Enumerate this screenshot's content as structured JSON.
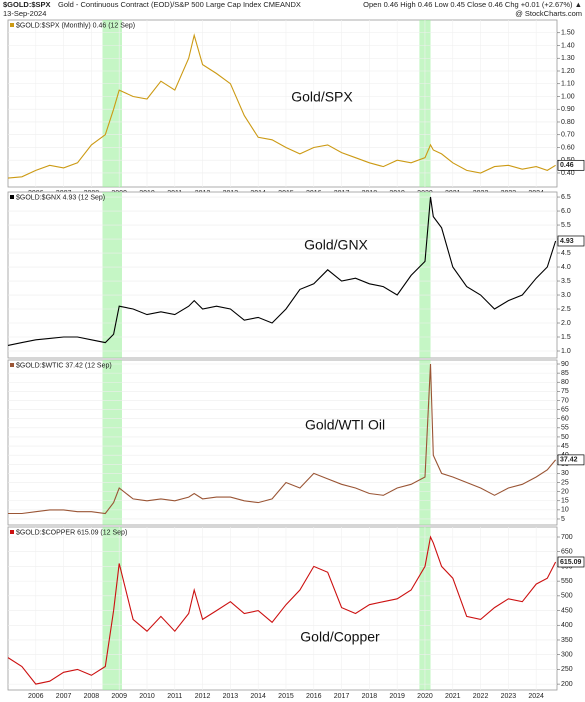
{
  "header": {
    "title": "$GOLD:$SPX",
    "subtitle": "Gold - Continuous Contract (EOD)/S&P 500 Large Cap Index CMEANDX",
    "date": "13-Sep-2024",
    "ohlc": "Open 0.46  High 0.46  Low 0.45  Close 0.46  Chg +0.01 (+2.67%) ▲",
    "credit": "@ StockCharts.com"
  },
  "chart_data": [
    {
      "type": "line",
      "annotation": "Gold/SPX",
      "xlim": [
        2005.0,
        2024.75
      ],
      "ylim": [
        0.29,
        1.6
      ],
      "highlights": [
        [
          2008.4,
          2009.1
        ],
        [
          2019.8,
          2020.2
        ]
      ],
      "xticks": [
        2006,
        2007,
        2008,
        2009,
        2010,
        2011,
        2012,
        2013,
        2014,
        2015,
        2016,
        2017,
        2018,
        2019,
        2020,
        2021,
        2022,
        2023,
        2024
      ],
      "yticks": [
        {
          "value": 0.4,
          "label": "0.40"
        },
        {
          "value": 0.5,
          "label": "0.50"
        },
        {
          "value": 0.6,
          "label": "0.60"
        },
        {
          "value": 0.7,
          "label": "0.70"
        },
        {
          "value": 0.8,
          "label": "0.80"
        },
        {
          "value": 0.9,
          "label": "0.90"
        },
        {
          "value": 1.0,
          "label": "1.00"
        },
        {
          "value": 1.1,
          "label": "1.10"
        },
        {
          "value": 1.2,
          "label": "1.20"
        },
        {
          "value": 1.3,
          "label": "1.30"
        },
        {
          "value": 1.4,
          "label": "1.40"
        },
        {
          "value": 1.5,
          "label": "1.50"
        }
      ],
      "x": [
        2005.0,
        2005.5,
        2006.0,
        2006.5,
        2007.0,
        2007.5,
        2008.0,
        2008.5,
        2008.8,
        2009.0,
        2009.5,
        2010.0,
        2010.5,
        2011.0,
        2011.5,
        2011.7,
        2012.0,
        2012.5,
        2013.0,
        2013.5,
        2014.0,
        2014.5,
        2015.0,
        2015.5,
        2016.0,
        2016.5,
        2017.0,
        2017.5,
        2018.0,
        2018.5,
        2019.0,
        2019.5,
        2020.0,
        2020.2,
        2020.3,
        2020.6,
        2021.0,
        2021.5,
        2022.0,
        2022.5,
        2023.0,
        2023.5,
        2024.0,
        2024.4,
        2024.7
      ],
      "series": [
        {
          "name": "$GOLD:$SPX (Monthly) 0.46 (12 Sep)",
          "color": "#cc9a14",
          "values": [
            0.36,
            0.37,
            0.42,
            0.46,
            0.44,
            0.48,
            0.62,
            0.7,
            0.9,
            1.05,
            1.0,
            0.98,
            1.12,
            1.05,
            1.3,
            1.48,
            1.25,
            1.18,
            1.1,
            0.85,
            0.68,
            0.66,
            0.6,
            0.55,
            0.6,
            0.62,
            0.56,
            0.52,
            0.48,
            0.45,
            0.5,
            0.48,
            0.52,
            0.62,
            0.58,
            0.55,
            0.48,
            0.42,
            0.4,
            0.45,
            0.46,
            0.43,
            0.45,
            0.42,
            0.46
          ]
        }
      ]
    },
    {
      "type": "line",
      "annotation": "Gold/GNX",
      "xlim": [
        2005.0,
        2024.75
      ],
      "ylim": [
        0.75,
        6.68
      ],
      "highlights": [
        [
          2008.4,
          2009.1
        ],
        [
          2019.8,
          2020.2
        ]
      ],
      "yticks": [
        {
          "value": 1,
          "label": "1.0"
        },
        1.5,
        {
          "value": 2,
          "label": "2.0"
        },
        2.5,
        {
          "value": 3,
          "label": "3.0"
        },
        3.5,
        {
          "value": 4,
          "label": "4.0"
        },
        4.5,
        {
          "value": 5,
          "label": "5.0"
        },
        5.5,
        {
          "value": 6,
          "label": "6.0"
        },
        6.5
      ],
      "x": [
        2005.0,
        2005.5,
        2006.0,
        2006.5,
        2007.0,
        2007.5,
        2008.0,
        2008.5,
        2008.8,
        2009.0,
        2009.5,
        2010.0,
        2010.5,
        2011.0,
        2011.5,
        2011.7,
        2012.0,
        2012.5,
        2013.0,
        2013.5,
        2014.0,
        2014.5,
        2015.0,
        2015.5,
        2016.0,
        2016.5,
        2017.0,
        2017.5,
        2018.0,
        2018.5,
        2019.0,
        2019.5,
        2020.0,
        2020.2,
        2020.3,
        2020.6,
        2021.0,
        2021.5,
        2022.0,
        2022.5,
        2023.0,
        2023.5,
        2024.0,
        2024.4,
        2024.7
      ],
      "series": [
        {
          "name": "$GOLD:$GNX 4.93 (12 Sep)",
          "color": "#000000",
          "values": [
            1.2,
            1.3,
            1.4,
            1.45,
            1.5,
            1.5,
            1.4,
            1.3,
            1.6,
            2.6,
            2.5,
            2.3,
            2.4,
            2.3,
            2.6,
            2.8,
            2.5,
            2.6,
            2.5,
            2.1,
            2.2,
            2.0,
            2.5,
            3.2,
            3.4,
            3.9,
            3.5,
            3.6,
            3.4,
            3.3,
            3.0,
            3.7,
            4.2,
            6.5,
            5.8,
            5.4,
            4.0,
            3.3,
            3.0,
            2.5,
            2.8,
            3.0,
            3.6,
            4.0,
            4.93
          ]
        }
      ]
    },
    {
      "type": "line",
      "annotation": "Gold/WTI Oil",
      "xlim": [
        2005.0,
        2024.75
      ],
      "ylim": [
        1.7,
        92.2
      ],
      "highlights": [
        [
          2008.4,
          2009.1
        ],
        [
          2019.8,
          2020.2
        ]
      ],
      "yticks": [
        5,
        10,
        15,
        20,
        25,
        30,
        35,
        40,
        45,
        50,
        55,
        60,
        65,
        70,
        75,
        80,
        85,
        90
      ],
      "x": [
        2005.0,
        2005.5,
        2006.0,
        2006.5,
        2007.0,
        2007.5,
        2008.0,
        2008.5,
        2008.8,
        2009.0,
        2009.5,
        2010.0,
        2010.5,
        2011.0,
        2011.5,
        2011.7,
        2012.0,
        2012.5,
        2013.0,
        2013.5,
        2014.0,
        2014.5,
        2015.0,
        2015.5,
        2016.0,
        2016.5,
        2017.0,
        2017.5,
        2018.0,
        2018.5,
        2019.0,
        2019.5,
        2020.0,
        2020.2,
        2020.3,
        2020.6,
        2021.0,
        2021.5,
        2022.0,
        2022.5,
        2023.0,
        2023.5,
        2024.0,
        2024.4,
        2024.7
      ],
      "series": [
        {
          "name": "$GOLD:$WTIC 37.42 (12 Sep)",
          "color": "#9a5535",
          "values": [
            8,
            8,
            9,
            10,
            10,
            9,
            9,
            8,
            14,
            22,
            16,
            15,
            16,
            15,
            17,
            19,
            16,
            17,
            17,
            15,
            14,
            16,
            25,
            22,
            30,
            27,
            24,
            22,
            19,
            18,
            22,
            24,
            28,
            90,
            40,
            30,
            28,
            25,
            22,
            18,
            22,
            24,
            28,
            32,
            37.42
          ]
        }
      ]
    },
    {
      "type": "line",
      "annotation": "Gold/Copper",
      "xlim": [
        2005.0,
        2024.75
      ],
      "ylim": [
        180,
        734
      ],
      "highlights": [
        [
          2008.4,
          2009.1
        ],
        [
          2019.8,
          2020.2
        ]
      ],
      "xticks": [
        2006,
        2007,
        2008,
        2009,
        2010,
        2011,
        2012,
        2013,
        2014,
        2015,
        2016,
        2017,
        2018,
        2019,
        2020,
        2021,
        2022,
        2023,
        2024
      ],
      "yticks": [
        200,
        250,
        300,
        350,
        400,
        450,
        500,
        550,
        600,
        650,
        700
      ],
      "x": [
        2005.0,
        2005.5,
        2006.0,
        2006.5,
        2007.0,
        2007.5,
        2008.0,
        2008.5,
        2008.8,
        2009.0,
        2009.5,
        2010.0,
        2010.5,
        2011.0,
        2011.5,
        2011.7,
        2012.0,
        2012.5,
        2013.0,
        2013.5,
        2014.0,
        2014.5,
        2015.0,
        2015.5,
        2016.0,
        2016.5,
        2017.0,
        2017.5,
        2018.0,
        2018.5,
        2019.0,
        2019.5,
        2020.0,
        2020.2,
        2020.3,
        2020.6,
        2021.0,
        2021.5,
        2022.0,
        2022.5,
        2023.0,
        2023.5,
        2024.0,
        2024.4,
        2024.7
      ],
      "series": [
        {
          "name": "$GOLD:$COPPER 615.09 (12 Sep)",
          "color": "#cc1111",
          "values": [
            290,
            260,
            200,
            210,
            240,
            250,
            230,
            260,
            450,
            610,
            420,
            380,
            430,
            380,
            440,
            520,
            420,
            450,
            480,
            440,
            450,
            410,
            470,
            520,
            600,
            580,
            460,
            440,
            470,
            480,
            490,
            520,
            600,
            700,
            680,
            600,
            560,
            430,
            420,
            460,
            490,
            480,
            540,
            560,
            615.09
          ]
        }
      ]
    }
  ]
}
